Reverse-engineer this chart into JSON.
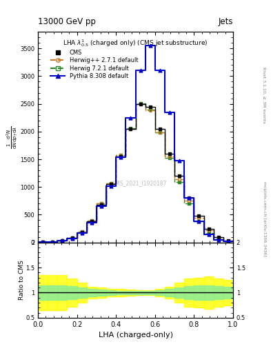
{
  "title_left": "13000 GeV pp",
  "title_right": "Jets",
  "plot_title": "LHA $\\lambda^1_{0.5}$ (charged only) (CMS jet substructure)",
  "xlabel": "LHA (charged-only)",
  "watermark": "CMS_2021_I1920187",
  "right_label_top": "Rivet 3.1.10, ≥ 3M events",
  "right_label_bot": "mcplots.cern.ch [arXiv:1306.3436]",
  "xedges": [
    0.0,
    0.05,
    0.1,
    0.15,
    0.2,
    0.25,
    0.3,
    0.35,
    0.4,
    0.45,
    0.5,
    0.55,
    0.6,
    0.65,
    0.7,
    0.75,
    0.8,
    0.85,
    0.9,
    0.95,
    1.0
  ],
  "cms_y": [
    5,
    10,
    30,
    80,
    180,
    380,
    680,
    1050,
    1550,
    2050,
    2500,
    2450,
    2050,
    1600,
    1200,
    800,
    480,
    250,
    100,
    30
  ],
  "herwig_pp_y": [
    5,
    12,
    35,
    85,
    190,
    390,
    700,
    1060,
    1570,
    2050,
    2490,
    2380,
    1980,
    1550,
    1140,
    760,
    440,
    220,
    90,
    25
  ],
  "herwig72_y": [
    5,
    12,
    35,
    85,
    190,
    390,
    700,
    1060,
    1580,
    2060,
    2510,
    2400,
    1980,
    1520,
    1090,
    710,
    380,
    170,
    60,
    15
  ],
  "pythia_y": [
    5,
    10,
    30,
    75,
    170,
    360,
    650,
    1020,
    1540,
    2250,
    3100,
    3550,
    3100,
    2350,
    1480,
    800,
    380,
    150,
    50,
    15
  ],
  "cms_color": "#000000",
  "herwig_pp_color": "#cc7722",
  "herwig72_color": "#228822",
  "pythia_color": "#0000cc",
  "ylim_main": [
    0,
    3800
  ],
  "yticks_main": [
    0,
    500,
    1000,
    1500,
    2000,
    2500,
    3000,
    3500
  ],
  "ylim_ratio": [
    0.5,
    2.0
  ],
  "band_yellow_x": [
    0.0,
    0.05,
    0.1,
    0.15,
    0.2,
    0.25,
    0.3,
    0.35,
    0.4,
    0.45,
    0.5,
    0.55,
    0.6,
    0.65,
    0.7,
    0.75,
    0.8,
    0.85,
    0.9,
    0.95,
    1.0
  ],
  "band_yellow_lo": [
    0.65,
    0.65,
    0.65,
    0.72,
    0.8,
    0.88,
    0.9,
    0.92,
    0.93,
    0.94,
    0.95,
    0.95,
    0.92,
    0.88,
    0.8,
    0.72,
    0.7,
    0.68,
    0.72,
    0.75,
    0.75
  ],
  "band_yellow_hi": [
    1.35,
    1.35,
    1.35,
    1.28,
    1.2,
    1.12,
    1.1,
    1.08,
    1.07,
    1.06,
    1.05,
    1.05,
    1.08,
    1.12,
    1.2,
    1.28,
    1.3,
    1.32,
    1.28,
    1.25,
    1.25
  ],
  "band_green_lo": [
    0.85,
    0.85,
    0.85,
    0.87,
    0.9,
    0.93,
    0.94,
    0.95,
    0.96,
    0.97,
    0.97,
    0.97,
    0.95,
    0.93,
    0.9,
    0.87,
    0.86,
    0.85,
    0.87,
    0.88,
    0.88
  ],
  "band_green_hi": [
    1.15,
    1.15,
    1.15,
    1.13,
    1.1,
    1.07,
    1.06,
    1.05,
    1.04,
    1.03,
    1.03,
    1.03,
    1.05,
    1.07,
    1.1,
    1.13,
    1.14,
    1.15,
    1.13,
    1.12,
    1.12
  ]
}
